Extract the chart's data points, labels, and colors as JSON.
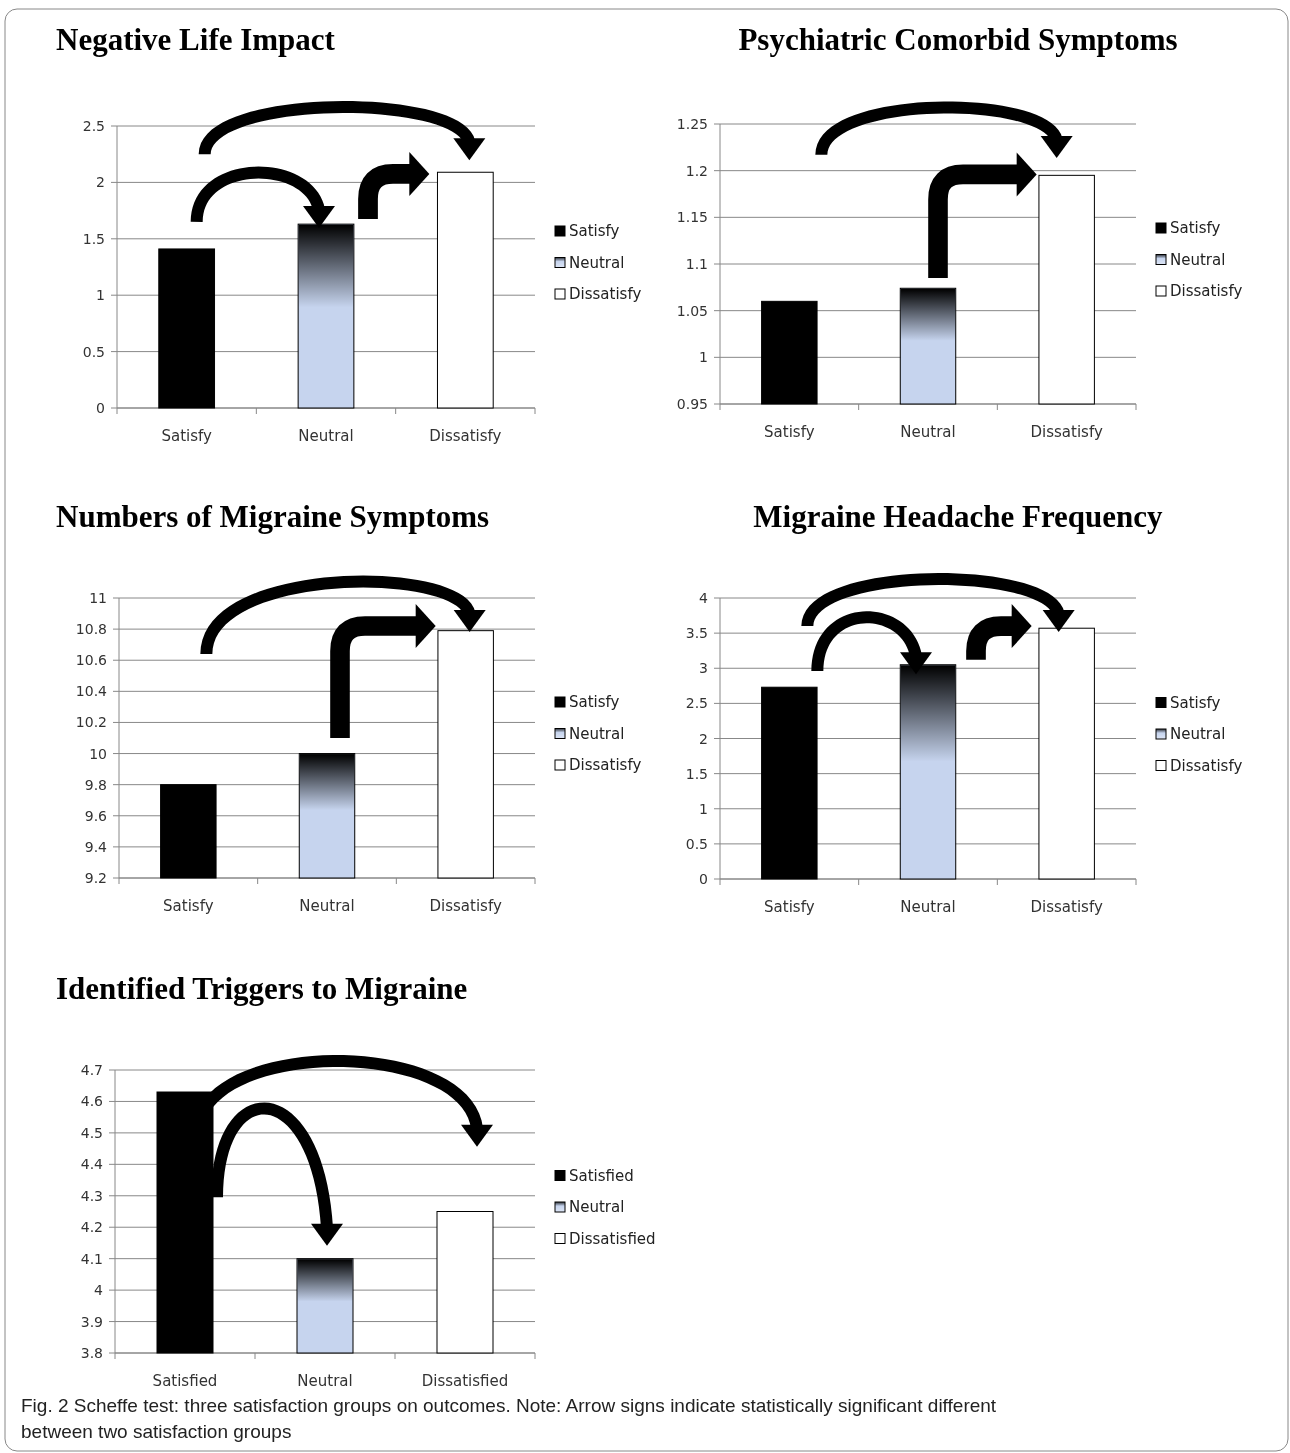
{
  "chart_data": [
    {
      "type": "bar",
      "title": "Negative Life Impact",
      "categories": [
        "Satisfy",
        "Neutral",
        "Dissatisfy"
      ],
      "series": [
        {
          "name": "Satisfy",
          "color": "#000000",
          "values": [
            1.41,
            null,
            null
          ]
        },
        {
          "name": "Neutral",
          "color": "#c6d4ee",
          "values": [
            null,
            1.63,
            null
          ]
        },
        {
          "name": "Dissatisfy",
          "color": "#ffffff",
          "values": [
            null,
            null,
            2.09
          ]
        }
      ],
      "ylim": [
        0,
        2.5
      ],
      "yticks": [
        0,
        0.5,
        1,
        1.5,
        2,
        2.5
      ],
      "grid": "y",
      "legend": "right"
    },
    {
      "type": "bar",
      "title": "Psychiatric Comorbid Symptoms",
      "categories": [
        "Satisfy",
        "Neutral",
        "Dissatisfy"
      ],
      "series": [
        {
          "name": "Satisfy",
          "color": "#000000",
          "values": [
            1.06,
            null,
            null
          ]
        },
        {
          "name": "Neutral",
          "color": "#c6d4ee",
          "values": [
            null,
            1.074,
            null
          ]
        },
        {
          "name": "Dissatisfy",
          "color": "#ffffff",
          "values": [
            null,
            null,
            1.195
          ]
        }
      ],
      "ylim": [
        0.95,
        1.25
      ],
      "yticks": [
        0.95,
        1,
        1.05,
        1.1,
        1.15,
        1.2,
        1.25
      ],
      "grid": "y",
      "legend": "right"
    },
    {
      "type": "bar",
      "title": "Numbers of Migraine Symptoms",
      "categories": [
        "Satisfy",
        "Neutral",
        "Dissatisfy"
      ],
      "series": [
        {
          "name": "Satisfy",
          "color": "#000000",
          "values": [
            9.8,
            null,
            null
          ]
        },
        {
          "name": "Neutral",
          "color": "#c6d4ee",
          "values": [
            null,
            10.0,
            null
          ]
        },
        {
          "name": "Dissatisfy",
          "color": "#ffffff",
          "values": [
            null,
            null,
            10.79
          ]
        }
      ],
      "ylim": [
        9.2,
        11
      ],
      "yticks": [
        9.2,
        9.4,
        9.6,
        9.8,
        10,
        10.2,
        10.4,
        10.6,
        10.8,
        11
      ],
      "grid": "y",
      "legend": "right"
    },
    {
      "type": "bar",
      "title": "Migraine Headache Frequency",
      "categories": [
        "Satisfy",
        "Neutral",
        "Dissatisfy"
      ],
      "series": [
        {
          "name": "Satisfy",
          "color": "#000000",
          "values": [
            2.73,
            null,
            null
          ]
        },
        {
          "name": "Neutral",
          "color": "#c6d4ee",
          "values": [
            null,
            3.05,
            null
          ]
        },
        {
          "name": "Dissatisfy",
          "color": "#ffffff",
          "values": [
            null,
            null,
            3.57
          ]
        }
      ],
      "ylim": [
        0,
        4
      ],
      "yticks": [
        0,
        0.5,
        1,
        1.5,
        2,
        2.5,
        3,
        3.5,
        4
      ],
      "grid": "y",
      "legend": "right"
    },
    {
      "type": "bar",
      "title": "Identified Triggers to Migraine",
      "categories": [
        "Satisfied",
        "Neutral",
        "Dissatisfied"
      ],
      "series": [
        {
          "name": "Satisfied",
          "color": "#000000",
          "values": [
            4.63,
            null,
            null
          ]
        },
        {
          "name": "Neutral",
          "color": "#c6d4ee",
          "values": [
            null,
            4.1,
            null
          ]
        },
        {
          "name": "Dissatisfied",
          "color": "#ffffff",
          "values": [
            null,
            null,
            4.25
          ]
        }
      ],
      "ylim": [
        3.8,
        4.7
      ],
      "yticks": [
        3.8,
        3.9,
        4,
        4.1,
        4.2,
        4.3,
        4.4,
        4.5,
        4.6,
        4.7
      ],
      "grid": "y",
      "legend": "right",
      "annotations": [
        "Fig. 2  Scheffe test: three satisfaction groups on outcomes. Note: Arrow signs indicate statistically significant different between two satisfaction groups"
      ]
    }
  ]
}
